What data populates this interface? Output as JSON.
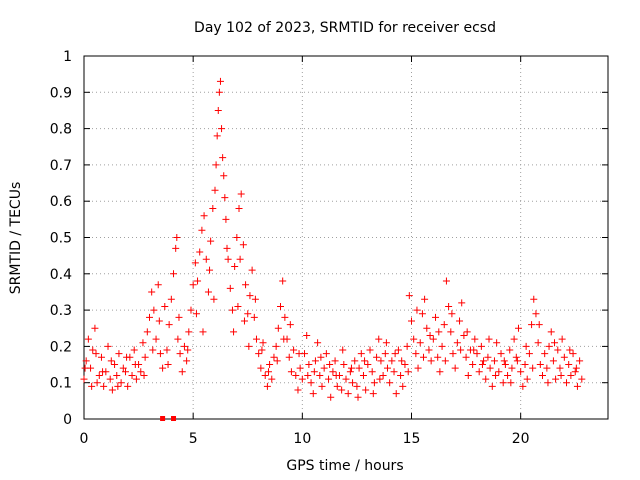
{
  "chart_data": {
    "type": "scatter",
    "title": "Day 102 of 2023, SRMTID for receiver ecsd",
    "xlabel": "GPS time / hours",
    "ylabel": "SRMTID / TECUs",
    "xlim": [
      0,
      24
    ],
    "ylim": [
      0,
      1
    ],
    "grid": true,
    "x_ticks": [
      "0",
      "5",
      "10",
      "15",
      "20"
    ],
    "y_ticks": [
      "0",
      "0.1",
      "0.2",
      "0.3",
      "0.4",
      "0.5",
      "0.6",
      "0.7",
      "0.8",
      "0.9",
      "1"
    ],
    "marker": "plus",
    "color": "#ff0000",
    "series": [
      {
        "name": "SRMTID",
        "points": [
          [
            0.0,
            0.11
          ],
          [
            0.1,
            0.16
          ],
          [
            0.2,
            0.22
          ],
          [
            0.3,
            0.14
          ],
          [
            0.4,
            0.19
          ],
          [
            0.5,
            0.25
          ],
          [
            0.6,
            0.1
          ],
          [
            0.7,
            0.12
          ],
          [
            0.8,
            0.17
          ],
          [
            0.9,
            0.09
          ],
          [
            1.0,
            0.13
          ],
          [
            1.1,
            0.2
          ],
          [
            1.2,
            0.11
          ],
          [
            1.3,
            0.08
          ],
          [
            1.4,
            0.15
          ],
          [
            1.5,
            0.12
          ],
          [
            1.6,
            0.18
          ],
          [
            1.7,
            0.1
          ],
          [
            1.8,
            0.14
          ],
          [
            1.9,
            0.13
          ],
          [
            2.0,
            0.09
          ],
          [
            2.1,
            0.17
          ],
          [
            2.2,
            0.12
          ],
          [
            2.3,
            0.19
          ],
          [
            2.4,
            0.11
          ],
          [
            2.5,
            0.15
          ],
          [
            2.6,
            0.13
          ],
          [
            2.7,
            0.21
          ],
          [
            2.8,
            0.17
          ],
          [
            2.9,
            0.24
          ],
          [
            3.0,
            0.28
          ],
          [
            3.1,
            0.35
          ],
          [
            3.2,
            0.3
          ],
          [
            3.3,
            0.22
          ],
          [
            3.4,
            0.37
          ],
          [
            3.5,
            0.18
          ],
          [
            3.6,
            0.14
          ],
          [
            3.7,
            0.31
          ],
          [
            3.8,
            0.19
          ],
          [
            3.9,
            0.26
          ],
          [
            4.0,
            0.33
          ],
          [
            4.1,
            0.4
          ],
          [
            4.2,
            0.47
          ],
          [
            4.25,
            0.5
          ],
          [
            4.3,
            0.22
          ],
          [
            4.4,
            0.18
          ],
          [
            4.5,
            0.13
          ],
          [
            4.6,
            0.2
          ],
          [
            4.7,
            0.16
          ],
          [
            4.8,
            0.24
          ],
          [
            4.9,
            0.3
          ],
          [
            5.0,
            0.37
          ],
          [
            5.1,
            0.43
          ],
          [
            5.2,
            0.38
          ],
          [
            5.3,
            0.46
          ],
          [
            5.4,
            0.52
          ],
          [
            5.5,
            0.56
          ],
          [
            5.6,
            0.44
          ],
          [
            5.7,
            0.35
          ],
          [
            5.8,
            0.49
          ],
          [
            5.9,
            0.58
          ],
          [
            6.0,
            0.63
          ],
          [
            6.05,
            0.7
          ],
          [
            6.1,
            0.78
          ],
          [
            6.15,
            0.85
          ],
          [
            6.2,
            0.9
          ],
          [
            6.25,
            0.93
          ],
          [
            6.3,
            0.8
          ],
          [
            6.35,
            0.72
          ],
          [
            6.4,
            0.67
          ],
          [
            6.5,
            0.55
          ],
          [
            6.6,
            0.44
          ],
          [
            6.7,
            0.36
          ],
          [
            6.8,
            0.3
          ],
          [
            6.9,
            0.42
          ],
          [
            7.0,
            0.5
          ],
          [
            7.1,
            0.58
          ],
          [
            7.2,
            0.62
          ],
          [
            7.3,
            0.48
          ],
          [
            7.4,
            0.37
          ],
          [
            7.5,
            0.29
          ],
          [
            7.6,
            0.34
          ],
          [
            7.7,
            0.41
          ],
          [
            7.8,
            0.28
          ],
          [
            7.9,
            0.22
          ],
          [
            8.0,
            0.18
          ],
          [
            8.1,
            0.14
          ],
          [
            8.2,
            0.21
          ],
          [
            8.3,
            0.12
          ],
          [
            8.4,
            0.09
          ],
          [
            8.5,
            0.15
          ],
          [
            8.6,
            0.11
          ],
          [
            8.7,
            0.17
          ],
          [
            8.8,
            0.2
          ],
          [
            8.9,
            0.25
          ],
          [
            9.0,
            0.31
          ],
          [
            9.1,
            0.38
          ],
          [
            9.2,
            0.28
          ],
          [
            9.3,
            0.22
          ],
          [
            9.4,
            0.17
          ],
          [
            9.5,
            0.13
          ],
          [
            9.6,
            0.19
          ],
          [
            9.7,
            0.12
          ],
          [
            9.8,
            0.08
          ],
          [
            9.9,
            0.14
          ],
          [
            10.0,
            0.11
          ],
          [
            10.1,
            0.18
          ],
          [
            10.2,
            0.23
          ],
          [
            10.3,
            0.15
          ],
          [
            10.4,
            0.1
          ],
          [
            10.5,
            0.07
          ],
          [
            10.6,
            0.16
          ],
          [
            10.7,
            0.21
          ],
          [
            10.8,
            0.12
          ],
          [
            10.9,
            0.09
          ],
          [
            11.0,
            0.14
          ],
          [
            11.1,
            0.18
          ],
          [
            11.2,
            0.11
          ],
          [
            11.3,
            0.06
          ],
          [
            11.4,
            0.13
          ],
          [
            11.5,
            0.16
          ],
          [
            11.6,
            0.09
          ],
          [
            11.7,
            0.12
          ],
          [
            11.8,
            0.08
          ],
          [
            11.9,
            0.15
          ],
          [
            12.0,
            0.11
          ],
          [
            12.1,
            0.07
          ],
          [
            12.2,
            0.13
          ],
          [
            12.3,
            0.1
          ],
          [
            12.4,
            0.16
          ],
          [
            12.5,
            0.09
          ],
          [
            12.6,
            0.14
          ],
          [
            12.7,
            0.18
          ],
          [
            12.8,
            0.12
          ],
          [
            12.9,
            0.08
          ],
          [
            13.0,
            0.15
          ],
          [
            13.1,
            0.19
          ],
          [
            13.2,
            0.13
          ],
          [
            13.3,
            0.1
          ],
          [
            13.4,
            0.17
          ],
          [
            13.5,
            0.22
          ],
          [
            13.6,
            0.16
          ],
          [
            13.7,
            0.12
          ],
          [
            13.8,
            0.18
          ],
          [
            13.9,
            0.14
          ],
          [
            14.0,
            0.1
          ],
          [
            14.1,
            0.16
          ],
          [
            14.2,
            0.13
          ],
          [
            14.3,
            0.07
          ],
          [
            14.4,
            0.19
          ],
          [
            14.5,
            0.12
          ],
          [
            14.6,
            0.09
          ],
          [
            14.7,
            0.15
          ],
          [
            14.8,
            0.2
          ],
          [
            14.9,
            0.34
          ],
          [
            15.0,
            0.27
          ],
          [
            15.1,
            0.22
          ],
          [
            15.2,
            0.18
          ],
          [
            15.3,
            0.14
          ],
          [
            15.4,
            0.21
          ],
          [
            15.5,
            0.29
          ],
          [
            15.6,
            0.33
          ],
          [
            15.7,
            0.25
          ],
          [
            15.8,
            0.19
          ],
          [
            15.9,
            0.16
          ],
          [
            16.0,
            0.22
          ],
          [
            16.1,
            0.28
          ],
          [
            16.2,
            0.17
          ],
          [
            16.3,
            0.13
          ],
          [
            16.4,
            0.2
          ],
          [
            16.5,
            0.26
          ],
          [
            16.6,
            0.38
          ],
          [
            16.7,
            0.31
          ],
          [
            16.8,
            0.24
          ],
          [
            16.9,
            0.18
          ],
          [
            17.0,
            0.14
          ],
          [
            17.1,
            0.21
          ],
          [
            17.2,
            0.27
          ],
          [
            17.3,
            0.32
          ],
          [
            17.4,
            0.23
          ],
          [
            17.5,
            0.17
          ],
          [
            17.6,
            0.12
          ],
          [
            17.7,
            0.19
          ],
          [
            17.8,
            0.15
          ],
          [
            17.9,
            0.22
          ],
          [
            18.0,
            0.18
          ],
          [
            18.1,
            0.13
          ],
          [
            18.2,
            0.2
          ],
          [
            18.3,
            0.16
          ],
          [
            18.4,
            0.11
          ],
          [
            18.5,
            0.17
          ],
          [
            18.6,
            0.14
          ],
          [
            18.7,
            0.09
          ],
          [
            18.8,
            0.16
          ],
          [
            18.9,
            0.21
          ],
          [
            19.0,
            0.13
          ],
          [
            19.1,
            0.18
          ],
          [
            19.2,
            0.1
          ],
          [
            19.3,
            0.15
          ],
          [
            19.4,
            0.12
          ],
          [
            19.5,
            0.19
          ],
          [
            19.6,
            0.14
          ],
          [
            19.7,
            0.22
          ],
          [
            19.8,
            0.17
          ],
          [
            19.9,
            0.25
          ],
          [
            20.0,
            0.13
          ],
          [
            20.1,
            0.09
          ],
          [
            20.2,
            0.15
          ],
          [
            20.3,
            0.11
          ],
          [
            20.4,
            0.18
          ],
          [
            20.5,
            0.26
          ],
          [
            20.6,
            0.33
          ],
          [
            20.7,
            0.29
          ],
          [
            20.8,
            0.21
          ],
          [
            20.9,
            0.15
          ],
          [
            21.0,
            0.12
          ],
          [
            21.1,
            0.18
          ],
          [
            21.2,
            0.14
          ],
          [
            21.3,
            0.2
          ],
          [
            21.4,
            0.24
          ],
          [
            21.5,
            0.16
          ],
          [
            21.6,
            0.11
          ],
          [
            21.7,
            0.19
          ],
          [
            21.8,
            0.14
          ],
          [
            21.9,
            0.22
          ],
          [
            22.0,
            0.17
          ],
          [
            22.1,
            0.1
          ],
          [
            22.2,
            0.15
          ],
          [
            22.3,
            0.12
          ],
          [
            22.4,
            0.18
          ],
          [
            22.5,
            0.13
          ],
          [
            22.6,
            0.09
          ],
          [
            22.7,
            0.16
          ],
          [
            22.8,
            0.11
          ],
          [
            0.05,
            0.14
          ],
          [
            0.35,
            0.09
          ],
          [
            0.55,
            0.18
          ],
          [
            0.85,
            0.13
          ],
          [
            1.25,
            0.16
          ],
          [
            1.55,
            0.09
          ],
          [
            1.95,
            0.17
          ],
          [
            2.35,
            0.15
          ],
          [
            2.75,
            0.12
          ],
          [
            3.15,
            0.19
          ],
          [
            3.45,
            0.27
          ],
          [
            3.85,
            0.15
          ],
          [
            4.35,
            0.28
          ],
          [
            4.75,
            0.19
          ],
          [
            5.15,
            0.29
          ],
          [
            5.45,
            0.24
          ],
          [
            5.75,
            0.41
          ],
          [
            5.95,
            0.33
          ],
          [
            6.45,
            0.61
          ],
          [
            6.55,
            0.47
          ],
          [
            6.85,
            0.24
          ],
          [
            7.05,
            0.31
          ],
          [
            7.15,
            0.44
          ],
          [
            7.35,
            0.27
          ],
          [
            7.55,
            0.2
          ],
          [
            7.85,
            0.33
          ],
          [
            8.15,
            0.19
          ],
          [
            8.45,
            0.13
          ],
          [
            8.85,
            0.16
          ],
          [
            9.15,
            0.22
          ],
          [
            9.45,
            0.26
          ],
          [
            9.85,
            0.18
          ],
          [
            10.25,
            0.12
          ],
          [
            10.55,
            0.13
          ],
          [
            10.85,
            0.17
          ],
          [
            11.25,
            0.15
          ],
          [
            11.55,
            0.12
          ],
          [
            11.85,
            0.19
          ],
          [
            12.25,
            0.14
          ],
          [
            12.55,
            0.06
          ],
          [
            12.85,
            0.16
          ],
          [
            13.25,
            0.07
          ],
          [
            13.55,
            0.11
          ],
          [
            13.85,
            0.21
          ],
          [
            14.25,
            0.18
          ],
          [
            14.55,
            0.16
          ],
          [
            14.85,
            0.13
          ],
          [
            15.25,
            0.3
          ],
          [
            15.55,
            0.17
          ],
          [
            15.85,
            0.23
          ],
          [
            16.25,
            0.24
          ],
          [
            16.55,
            0.16
          ],
          [
            16.85,
            0.29
          ],
          [
            17.25,
            0.19
          ],
          [
            17.55,
            0.24
          ],
          [
            17.85,
            0.19
          ],
          [
            18.25,
            0.15
          ],
          [
            18.55,
            0.22
          ],
          [
            18.85,
            0.12
          ],
          [
            19.25,
            0.16
          ],
          [
            19.55,
            0.1
          ],
          [
            19.85,
            0.16
          ],
          [
            20.25,
            0.2
          ],
          [
            20.55,
            0.14
          ],
          [
            20.85,
            0.26
          ],
          [
            21.25,
            0.1
          ],
          [
            21.55,
            0.21
          ],
          [
            21.85,
            0.12
          ],
          [
            22.25,
            0.19
          ],
          [
            22.55,
            0.14
          ]
        ]
      }
    ],
    "zero_markers_x": [
      3.6,
      4.1
    ]
  }
}
